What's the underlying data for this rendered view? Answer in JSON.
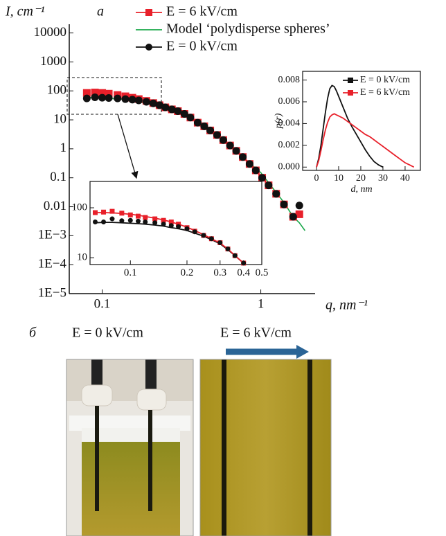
{
  "chart_data": [
    {
      "type": "scatter",
      "panel": "а",
      "ylabel": "I, cm⁻¹",
      "xlabel": "q, nm⁻¹",
      "xscale": "log",
      "yscale": "log",
      "xlim": [
        0.062,
        2.2
      ],
      "ylim": [
        1e-05,
        20000
      ],
      "xticks": [
        0.1,
        1
      ],
      "yticks": [
        {
          "value": 1e-05,
          "label": "1E−5"
        },
        {
          "value": 0.0001,
          "label": "1E−4"
        },
        {
          "value": 0.001,
          "label": "1E−3"
        },
        0.01,
        0.1,
        1,
        10,
        100,
        1000,
        10000
      ],
      "legend": "top-center",
      "series": [
        {
          "name": "E = 6 kV/cm",
          "color": "#e8202a",
          "marker": "square",
          "x": [
            0.08,
            0.09,
            0.1,
            0.11,
            0.125,
            0.14,
            0.155,
            0.17,
            0.19,
            0.21,
            0.23,
            0.25,
            0.275,
            0.3,
            0.33,
            0.36,
            0.4,
            0.44,
            0.48,
            0.53,
            0.58,
            0.64,
            0.7,
            0.77,
            0.85,
            0.93,
            1.02,
            1.12,
            1.25,
            1.4,
            1.6,
            1.75
          ],
          "values": [
            85,
            88,
            85,
            80,
            72,
            65,
            58,
            52,
            45,
            38,
            32,
            27,
            23,
            20,
            16,
            12,
            8,
            6,
            4.3,
            3,
            2,
            1.3,
            0.85,
            0.52,
            0.3,
            0.18,
            0.1,
            0.055,
            0.028,
            0.012,
            0.0045,
            0.0055
          ]
        },
        {
          "name": "Model ‘polydisperse spheres’",
          "color": "#1aa84a",
          "marker": null,
          "x": [
            0.08,
            0.15,
            0.3,
            0.5,
            1,
            1.4,
            1.6,
            1.75,
            1.9
          ],
          "values": [
            60,
            50,
            20,
            4,
            0.15,
            0.014,
            0.0045,
            0.0028,
            0.0015
          ]
        },
        {
          "name": "E = 0 kV/cm",
          "color": "#111111",
          "marker": "circle",
          "x": [
            0.08,
            0.09,
            0.1,
            0.11,
            0.125,
            0.14,
            0.155,
            0.17,
            0.19,
            0.21,
            0.23,
            0.25,
            0.275,
            0.3,
            0.33,
            0.36,
            0.4,
            0.44,
            0.48,
            0.53,
            0.58,
            0.64,
            0.7,
            0.77,
            0.85,
            0.93,
            1.02,
            1.12,
            1.25,
            1.4,
            1.6,
            1.75
          ],
          "values": [
            55,
            60,
            58,
            57,
            55,
            52,
            50,
            47,
            42,
            37,
            32,
            27,
            23,
            20,
            16,
            12,
            8,
            6,
            4.3,
            3,
            2,
            1.3,
            0.85,
            0.52,
            0.3,
            0.18,
            0.1,
            0.055,
            0.028,
            0.012,
            0.0045,
            0.011
          ]
        }
      ]
    },
    {
      "type": "scatter",
      "xscale": "log",
      "yscale": "log",
      "xlim": [
        0.061,
        0.5
      ],
      "ylim": [
        7.3,
        337
      ],
      "xticks": [
        0.1,
        0.2,
        0.3,
        0.4,
        0.5
      ],
      "yticks": [
        10,
        100
      ],
      "series": [
        {
          "color": "#111111",
          "marker": null,
          "x": [
            0.065,
            0.072,
            0.08,
            0.09,
            0.1,
            0.11,
            0.12,
            0.135,
            0.15,
            0.165,
            0.18,
            0.2,
            0.22,
            0.245,
            0.27,
            0.3,
            0.33,
            0.36,
            0.4
          ],
          "values": [
            50,
            51,
            51,
            50,
            49,
            48,
            47,
            45,
            43,
            40,
            38,
            35,
            31,
            27,
            23,
            19,
            14.5,
            11,
            7.8
          ]
        },
        {
          "color": "#e8202a",
          "marker": null,
          "x": [
            0.065,
            0.072,
            0.08,
            0.09,
            0.1,
            0.11,
            0.12,
            0.135,
            0.15,
            0.165,
            0.18,
            0.2,
            0.22,
            0.245,
            0.27,
            0.3,
            0.33,
            0.36,
            0.4
          ],
          "values": [
            80,
            80,
            79,
            77,
            74,
            71,
            67,
            62,
            57,
            52,
            47,
            41,
            35,
            29,
            24,
            19.5,
            15,
            11,
            7.8
          ]
        },
        {
          "color": "#e8202a",
          "marker": "square",
          "x": [
            0.065,
            0.072,
            0.08,
            0.09,
            0.1,
            0.11,
            0.12,
            0.135,
            0.15,
            0.165,
            0.18,
            0.2,
            0.22,
            0.245,
            0.27,
            0.3,
            0.33,
            0.36,
            0.4
          ],
          "values": [
            80,
            82,
            85,
            78,
            72,
            68,
            64,
            60,
            56,
            52,
            47,
            40,
            34,
            28,
            24,
            20,
            15,
            11,
            7.8
          ]
        },
        {
          "color": "#111111",
          "marker": "circle",
          "x": [
            0.065,
            0.072,
            0.08,
            0.09,
            0.1,
            0.11,
            0.12,
            0.135,
            0.15,
            0.165,
            0.18,
            0.2,
            0.22,
            0.245,
            0.27,
            0.3,
            0.33,
            0.36,
            0.4
          ],
          "values": [
            52,
            52,
            60,
            55,
            56,
            54,
            52,
            50,
            47,
            44,
            42,
            38,
            33,
            28,
            24,
            20,
            15,
            11,
            7.8
          ]
        }
      ]
    },
    {
      "type": "line",
      "ylabel": "p(r)",
      "xlabel": "d, nm",
      "xlim": [
        -6.25,
        46.9
      ],
      "ylim": [
        -0.0003,
        0.0088
      ],
      "xticks": [
        0,
        10,
        20,
        30,
        40
      ],
      "yticks": [
        {
          "value": 0,
          "label": "0.000"
        },
        {
          "value": 0.002,
          "label": "0.002"
        },
        {
          "value": 0.004,
          "label": "0.004"
        },
        {
          "value": 0.006,
          "label": "0.006"
        },
        {
          "value": 0.008,
          "label": "0.008"
        }
      ],
      "legend": "top-right",
      "series": [
        {
          "name": "E = 0 kV/cm",
          "color": "#111111",
          "x": [
            0,
            1,
            2,
            3,
            4,
            5,
            6,
            7,
            8,
            9,
            10,
            12,
            14,
            16,
            18,
            20,
            22,
            24,
            26,
            28,
            30
          ],
          "values": [
            0,
            0.0008,
            0.002,
            0.0035,
            0.005,
            0.0063,
            0.0072,
            0.0075,
            0.0074,
            0.007,
            0.0065,
            0.0055,
            0.0045,
            0.0037,
            0.003,
            0.0023,
            0.0016,
            0.001,
            0.0005,
            0.0002,
            0
          ]
        },
        {
          "name": "E = 6 kV/cm",
          "color": "#e8202a",
          "x": [
            0,
            1,
            2,
            3,
            4,
            5,
            6,
            7,
            8,
            9,
            10,
            12,
            14,
            16,
            18,
            20,
            22,
            24,
            26,
            28,
            30,
            32,
            34,
            36,
            38,
            40,
            42,
            44
          ],
          "values": [
            0,
            0.0006,
            0.0015,
            0.0025,
            0.0034,
            0.0041,
            0.0046,
            0.0048,
            0.0049,
            0.0048,
            0.0047,
            0.0045,
            0.0042,
            0.0039,
            0.0036,
            0.0033,
            0.003,
            0.0028,
            0.0025,
            0.0022,
            0.0019,
            0.0016,
            0.0013,
            0.001,
            0.0007,
            0.0004,
            0.0002,
            0
          ]
        }
      ]
    }
  ],
  "photos": {
    "panel": "б",
    "captions": [
      "E = 0 kV/cm",
      "E = 6 kV/cm"
    ]
  }
}
